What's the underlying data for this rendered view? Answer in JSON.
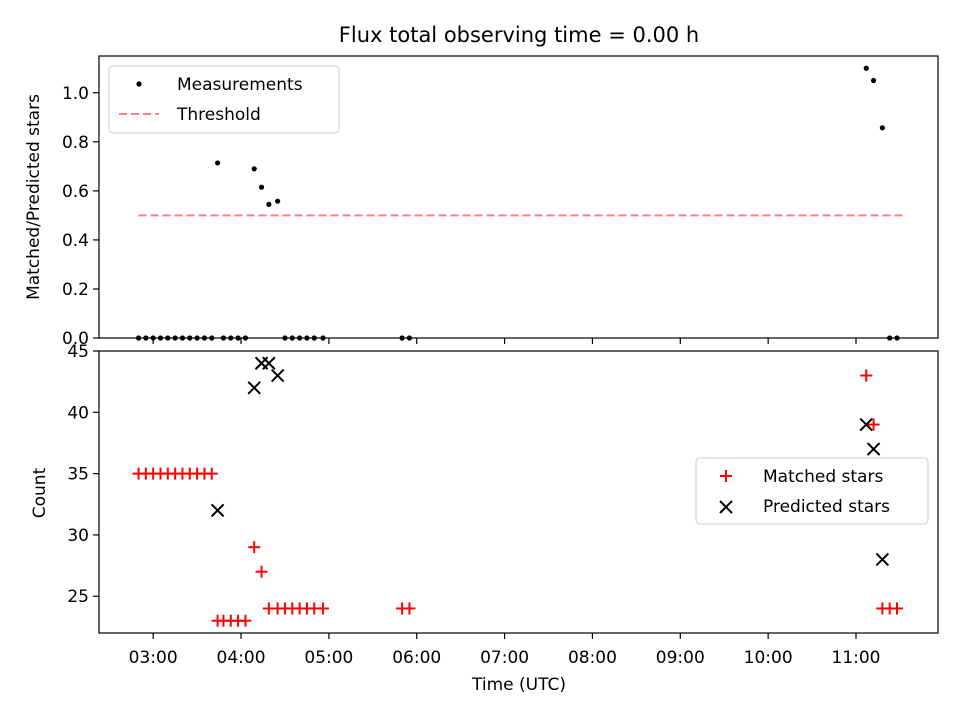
{
  "figure": {
    "title": "Flux total observing time = 0.00 h",
    "xlabel": "Time (UTC)"
  },
  "chart_data": [
    {
      "type": "scatter",
      "panel": "top",
      "ylabel": "Matched/Predicted stars",
      "xlim": [
        "02:23",
        "11:56"
      ],
      "ylim": [
        0,
        1.15
      ],
      "y_ticks": [
        "0.0",
        "0.2",
        "0.4",
        "0.6",
        "0.8",
        "1.0"
      ],
      "x_ticks": [
        "03:00",
        "04:00",
        "05:00",
        "06:00",
        "07:00",
        "08:00",
        "09:00",
        "10:00",
        "11:00"
      ],
      "legend": {
        "position": "upper left",
        "entries": [
          "Measurements",
          "Threshold"
        ]
      },
      "series": [
        {
          "name": "Measurements",
          "marker": "dot",
          "color": "#000000",
          "points": [
            [
              "02:50",
              0
            ],
            [
              "02:55",
              0
            ],
            [
              "03:00",
              0
            ],
            [
              "03:05",
              0
            ],
            [
              "03:10",
              0
            ],
            [
              "03:15",
              0
            ],
            [
              "03:20",
              0
            ],
            [
              "03:25",
              0
            ],
            [
              "03:30",
              0
            ],
            [
              "03:35",
              0
            ],
            [
              "03:40",
              0
            ],
            [
              "03:44",
              0.714
            ],
            [
              "03:48",
              0
            ],
            [
              "03:53",
              0
            ],
            [
              "03:58",
              0
            ],
            [
              "04:03",
              0
            ],
            [
              "04:09",
              0.69
            ],
            [
              "04:14",
              0.615
            ],
            [
              "04:19",
              0.545
            ],
            [
              "04:25",
              0.558
            ],
            [
              "04:30",
              0
            ],
            [
              "04:35",
              0
            ],
            [
              "04:40",
              0
            ],
            [
              "04:45",
              0
            ],
            [
              "04:50",
              0
            ],
            [
              "04:56",
              0
            ],
            [
              "05:50",
              0
            ],
            [
              "05:55",
              0
            ],
            [
              "11:07",
              1.1
            ],
            [
              "11:12",
              1.05
            ],
            [
              "11:18",
              0.857
            ],
            [
              "11:23",
              0
            ],
            [
              "11:28",
              0
            ]
          ]
        },
        {
          "name": "Threshold",
          "style": "dashed",
          "color": "#ff7f7f",
          "x": [
            "02:50",
            "11:33"
          ],
          "y": [
            0.5,
            0.5
          ]
        }
      ]
    },
    {
      "type": "scatter",
      "panel": "bottom",
      "ylabel": "Count",
      "xlim": [
        "02:23",
        "11:56"
      ],
      "ylim": [
        22,
        45
      ],
      "y_ticks": [
        "25",
        "30",
        "35",
        "40",
        "45"
      ],
      "x_ticks": [
        "03:00",
        "04:00",
        "05:00",
        "06:00",
        "07:00",
        "08:00",
        "09:00",
        "10:00",
        "11:00"
      ],
      "legend": {
        "position": "center right",
        "entries": [
          "Matched stars",
          "Predicted stars"
        ]
      },
      "series": [
        {
          "name": "Matched stars",
          "marker": "plus",
          "color": "#ff0000",
          "points": [
            [
              "02:50",
              35
            ],
            [
              "02:55",
              35
            ],
            [
              "03:00",
              35
            ],
            [
              "03:05",
              35
            ],
            [
              "03:10",
              35
            ],
            [
              "03:15",
              35
            ],
            [
              "03:20",
              35
            ],
            [
              "03:25",
              35
            ],
            [
              "03:30",
              35
            ],
            [
              "03:35",
              35
            ],
            [
              "03:40",
              35
            ],
            [
              "03:44",
              23
            ],
            [
              "03:48",
              23
            ],
            [
              "03:53",
              23
            ],
            [
              "03:58",
              23
            ],
            [
              "04:03",
              23
            ],
            [
              "04:09",
              29
            ],
            [
              "04:14",
              27
            ],
            [
              "04:19",
              24
            ],
            [
              "04:25",
              24
            ],
            [
              "04:30",
              24
            ],
            [
              "04:35",
              24
            ],
            [
              "04:40",
              24
            ],
            [
              "04:45",
              24
            ],
            [
              "04:50",
              24
            ],
            [
              "04:56",
              24
            ],
            [
              "05:50",
              24
            ],
            [
              "05:55",
              24
            ],
            [
              "11:07",
              43
            ],
            [
              "11:12",
              39
            ],
            [
              "11:18",
              24
            ],
            [
              "11:23",
              24
            ],
            [
              "11:28",
              24
            ]
          ]
        },
        {
          "name": "Predicted stars",
          "marker": "x",
          "color": "#000000",
          "points": [
            [
              "03:44",
              32
            ],
            [
              "04:09",
              42
            ],
            [
              "04:14",
              44
            ],
            [
              "04:19",
              44
            ],
            [
              "04:25",
              43
            ],
            [
              "11:07",
              39
            ],
            [
              "11:12",
              37
            ],
            [
              "11:18",
              28
            ]
          ]
        }
      ]
    }
  ]
}
